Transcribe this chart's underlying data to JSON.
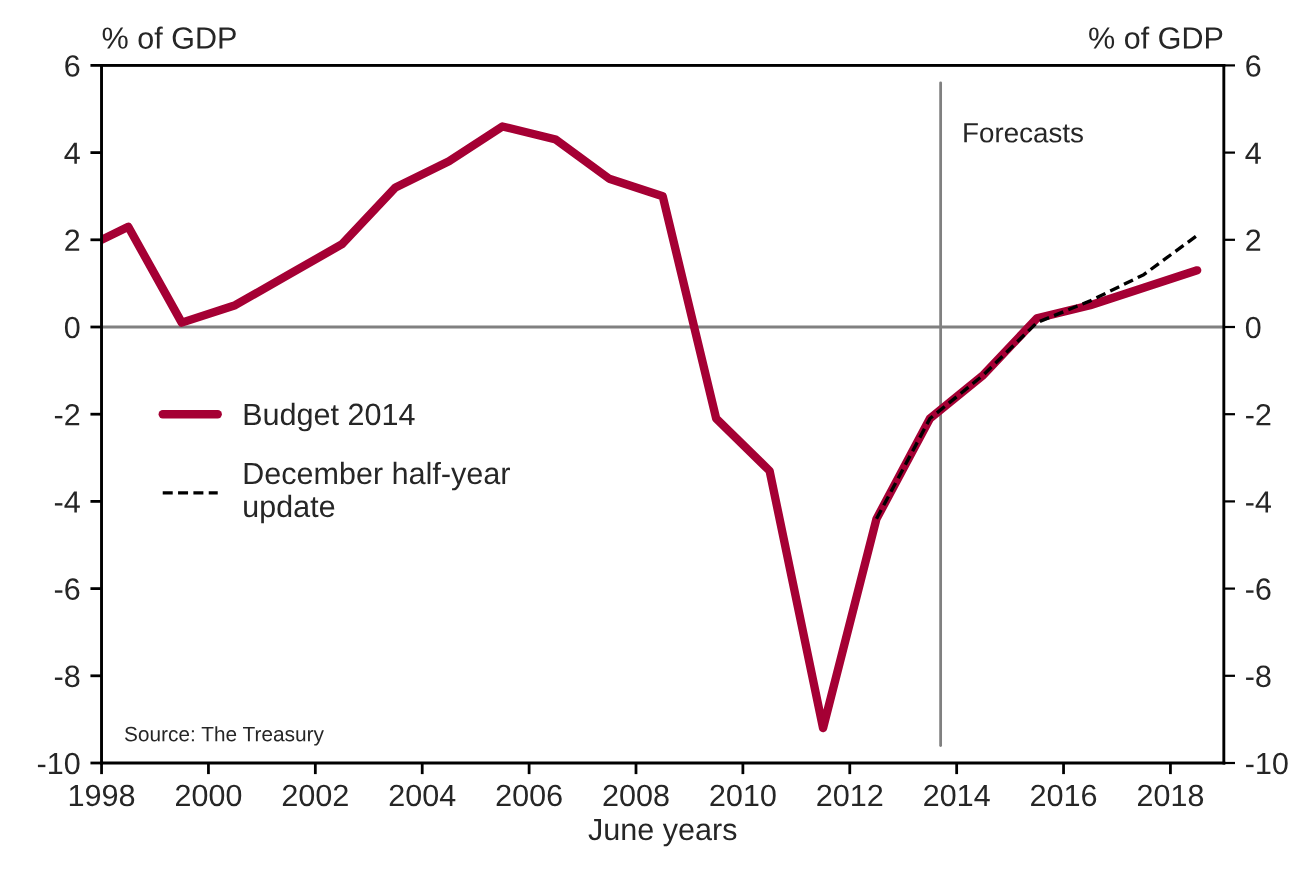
{
  "chart_data": {
    "type": "line",
    "xlabel": "June years",
    "ylabel": "% of GDP",
    "y2label": "% of GDP",
    "xlim": [
      1998,
      2019
    ],
    "xticks": [
      1998,
      2000,
      2002,
      2004,
      2006,
      2008,
      2010,
      2012,
      2014,
      2016,
      2018
    ],
    "ylim": [
      -10,
      6
    ],
    "yticks": [
      -10,
      -8,
      -6,
      -4,
      -2,
      0,
      2,
      4,
      6
    ],
    "y2lim": [
      -10,
      6
    ],
    "y2ticks": [
      -10,
      -8,
      -6,
      -4,
      -2,
      0,
      2,
      4,
      6
    ],
    "series": [
      {
        "name": "Budget 2014",
        "color": "#a50034",
        "line_style": "solid",
        "x": [
          1998,
          1998.5,
          1999.5,
          2000.5,
          2001.5,
          2002.5,
          2003.5,
          2004.5,
          2005.5,
          2006.5,
          2007.5,
          2008.5,
          2009.5,
          2010.5,
          2011.5,
          2012.5,
          2013.5,
          2014.5,
          2015.5,
          2016.5,
          2017.5,
          2018.5
        ],
        "values": [
          2.0,
          2.3,
          0.1,
          0.5,
          1.2,
          1.9,
          3.2,
          3.8,
          4.6,
          4.3,
          3.4,
          3.0,
          -2.1,
          -3.3,
          -9.2,
          -4.4,
          -2.1,
          -1.1,
          0.2,
          0.5,
          0.9,
          1.3
        ]
      },
      {
        "name": "December half-year update",
        "color": "#000000",
        "line_style": "dashed",
        "x": [
          2012.5,
          2013.5,
          2014.5,
          2015.5,
          2016.5,
          2017.5,
          2018.5
        ],
        "values": [
          -4.4,
          -2.1,
          -1.1,
          0.1,
          0.6,
          1.2,
          2.1
        ]
      }
    ],
    "ref_lines": [
      {
        "axis": "y",
        "value": 0,
        "color": "#808080"
      },
      {
        "axis": "x",
        "value": 2013.7,
        "label": "Forecasts",
        "color": "#808080"
      }
    ],
    "annotations": [
      "Source: The Treasury"
    ],
    "legend": "left",
    "grid": false,
    "marker": "none"
  }
}
